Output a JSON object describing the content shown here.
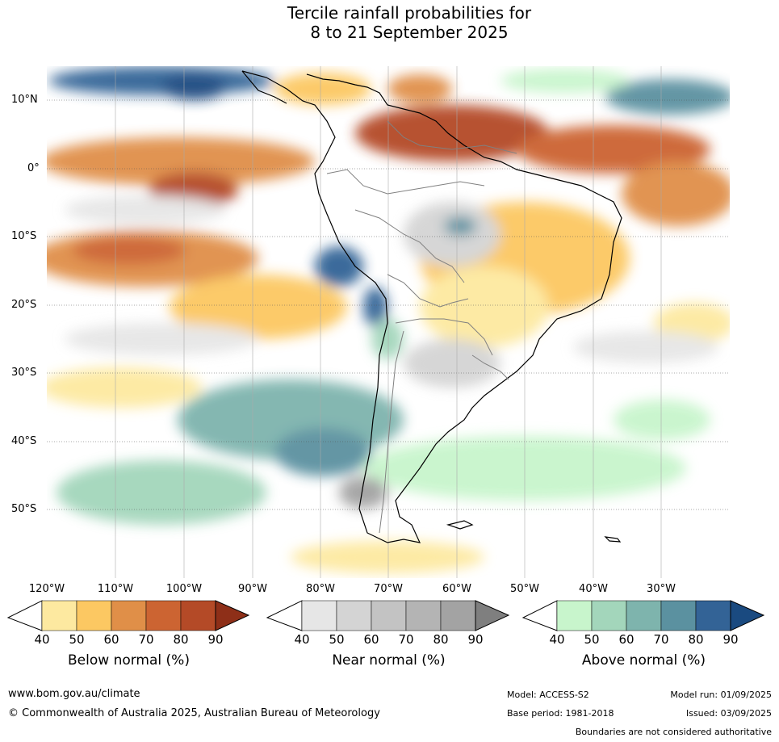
{
  "title_line1": "Tercile rainfall probabilities for",
  "title_line2": "8 to 21 September 2025",
  "lat_labels": [
    "10°N",
    "0°",
    "10°S",
    "20°S",
    "30°S",
    "40°S",
    "50°S"
  ],
  "lon_labels": [
    "120°W",
    "110°W",
    "100°W",
    "90°W",
    "80°W",
    "70°W",
    "60°W",
    "50°W",
    "40°W",
    "30°W"
  ],
  "colorbars": [
    {
      "title": "Below normal (%)",
      "ticks": [
        "40",
        "50",
        "60",
        "70",
        "80",
        "90"
      ],
      "colors": [
        "#ffffff",
        "#fde9a0",
        "#fcc862",
        "#e08f48",
        "#cc6432",
        "#b44a27",
        "#8e2f18"
      ]
    },
    {
      "title": "Near normal (%)",
      "ticks": [
        "40",
        "50",
        "60",
        "70",
        "80",
        "90"
      ],
      "colors": [
        "#ffffff",
        "#e6e6e6",
        "#d4d4d4",
        "#c3c3c3",
        "#b4b4b4",
        "#a3a3a3",
        "#7f7f7f"
      ]
    },
    {
      "title": "Above normal (%)",
      "ticks": [
        "40",
        "50",
        "60",
        "70",
        "80",
        "90"
      ],
      "colors": [
        "#ffffff",
        "#c8f5cc",
        "#a3d6bb",
        "#7eb4ad",
        "#5b91a0",
        "#336396",
        "#1a4a80"
      ]
    }
  ],
  "footer": {
    "website": "www.bom.gov.au/climate",
    "copyright": "© Commonwealth of Australia 2025, Australian Bureau of Meteorology",
    "model": "Model: ACCESS-S2",
    "base_period": "Base period: 1981-2018",
    "model_run": "Model run: 01/09/2025",
    "issued": "Issued: 03/09/2025",
    "disclaimer": "Boundaries are not considered authoritative"
  }
}
